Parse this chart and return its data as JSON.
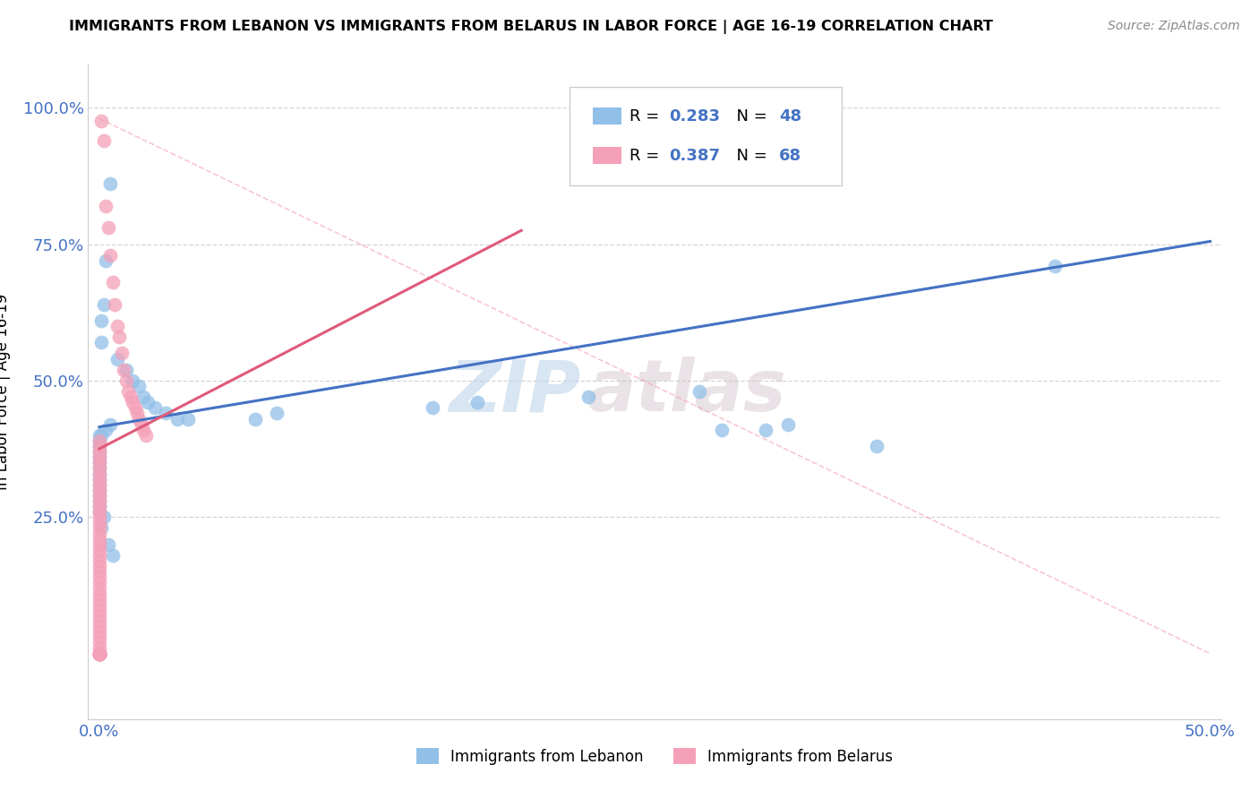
{
  "title": "IMMIGRANTS FROM LEBANON VS IMMIGRANTS FROM BELARUS IN LABOR FORCE | AGE 16-19 CORRELATION CHART",
  "source": "Source: ZipAtlas.com",
  "ylabel": "In Labor Force | Age 16-19",
  "legend_label_1": "Immigrants from Lebanon",
  "legend_label_2": "Immigrants from Belarus",
  "R1": 0.283,
  "N1": 48,
  "R2": 0.387,
  "N2": 68,
  "color1": "#92C0E8",
  "color2": "#F4A0B8",
  "line_color1": "#4472C4",
  "line_color2": "#E05A7A",
  "watermark1": "ZIP",
  "watermark2": "atlas",
  "xlim_min": -0.005,
  "xlim_max": 0.505,
  "ylim_min": -0.12,
  "ylim_max": 1.08,
  "xtick_positions": [
    0.0,
    0.5
  ],
  "xtick_labels": [
    "0.0%",
    "50.0%"
  ],
  "ytick_positions": [
    0.25,
    0.5,
    0.75,
    1.0
  ],
  "ytick_labels": [
    "25.0%",
    "50.0%",
    "75.0%",
    "100.0%"
  ],
  "blue_line_x": [
    0.0,
    0.5
  ],
  "blue_line_y": [
    0.415,
    0.755
  ],
  "pink_line_x": [
    0.0,
    0.19
  ],
  "pink_line_y": [
    0.375,
    0.775
  ],
  "diag_line_x": [
    0.0,
    0.5
  ],
  "diag_line_y": [
    0.98,
    0.0
  ],
  "scatter1_x": [
    0.005,
    0.003,
    0.002,
    0.001,
    0.001,
    0.008,
    0.012,
    0.015,
    0.018,
    0.02,
    0.022,
    0.025,
    0.03,
    0.035,
    0.04,
    0.005,
    0.003,
    0.001,
    0.0,
    0.0,
    0.0,
    0.0,
    0.0,
    0.0,
    0.0,
    0.0,
    0.0,
    0.0,
    0.0,
    0.0,
    0.0,
    0.0,
    0.0,
    0.15,
    0.17,
    0.22,
    0.27,
    0.3,
    0.35,
    0.43,
    0.28,
    0.31,
    0.07,
    0.08,
    0.002,
    0.001,
    0.004,
    0.006
  ],
  "scatter1_y": [
    0.86,
    0.72,
    0.64,
    0.61,
    0.57,
    0.54,
    0.52,
    0.5,
    0.49,
    0.47,
    0.46,
    0.45,
    0.44,
    0.43,
    0.43,
    0.42,
    0.41,
    0.4,
    0.4,
    0.39,
    0.38,
    0.37,
    0.36,
    0.35,
    0.34,
    0.33,
    0.32,
    0.31,
    0.3,
    0.29,
    0.28,
    0.27,
    0.26,
    0.45,
    0.46,
    0.47,
    0.48,
    0.41,
    0.38,
    0.71,
    0.41,
    0.42,
    0.43,
    0.44,
    0.25,
    0.23,
    0.2,
    0.18
  ],
  "scatter2_x": [
    0.001,
    0.002,
    0.003,
    0.004,
    0.005,
    0.006,
    0.007,
    0.008,
    0.009,
    0.01,
    0.011,
    0.012,
    0.013,
    0.014,
    0.015,
    0.016,
    0.017,
    0.018,
    0.019,
    0.02,
    0.021,
    0.0,
    0.0,
    0.0,
    0.0,
    0.0,
    0.0,
    0.0,
    0.0,
    0.0,
    0.0,
    0.0,
    0.0,
    0.0,
    0.0,
    0.0,
    0.0,
    0.0,
    0.0,
    0.0,
    0.0,
    0.0,
    0.0,
    0.0,
    0.0,
    0.0,
    0.0,
    0.0,
    0.0,
    0.0,
    0.0,
    0.0,
    0.0,
    0.0,
    0.0,
    0.0,
    0.0,
    0.0,
    0.0,
    0.0,
    0.0,
    0.0,
    0.0,
    0.0,
    0.0,
    0.0,
    0.0,
    0.0
  ],
  "scatter2_y": [
    0.975,
    0.94,
    0.82,
    0.78,
    0.73,
    0.68,
    0.64,
    0.6,
    0.58,
    0.55,
    0.52,
    0.5,
    0.48,
    0.47,
    0.46,
    0.45,
    0.44,
    0.43,
    0.42,
    0.41,
    0.4,
    0.39,
    0.38,
    0.37,
    0.36,
    0.35,
    0.34,
    0.33,
    0.32,
    0.31,
    0.3,
    0.29,
    0.28,
    0.27,
    0.26,
    0.25,
    0.24,
    0.23,
    0.22,
    0.21,
    0.2,
    0.19,
    0.18,
    0.17,
    0.16,
    0.15,
    0.14,
    0.13,
    0.12,
    0.11,
    0.1,
    0.09,
    0.08,
    0.07,
    0.06,
    0.05,
    0.04,
    0.03,
    0.02,
    0.01,
    0.0,
    0.0,
    0.0,
    0.0,
    0.0,
    0.0,
    0.0,
    0.0
  ]
}
